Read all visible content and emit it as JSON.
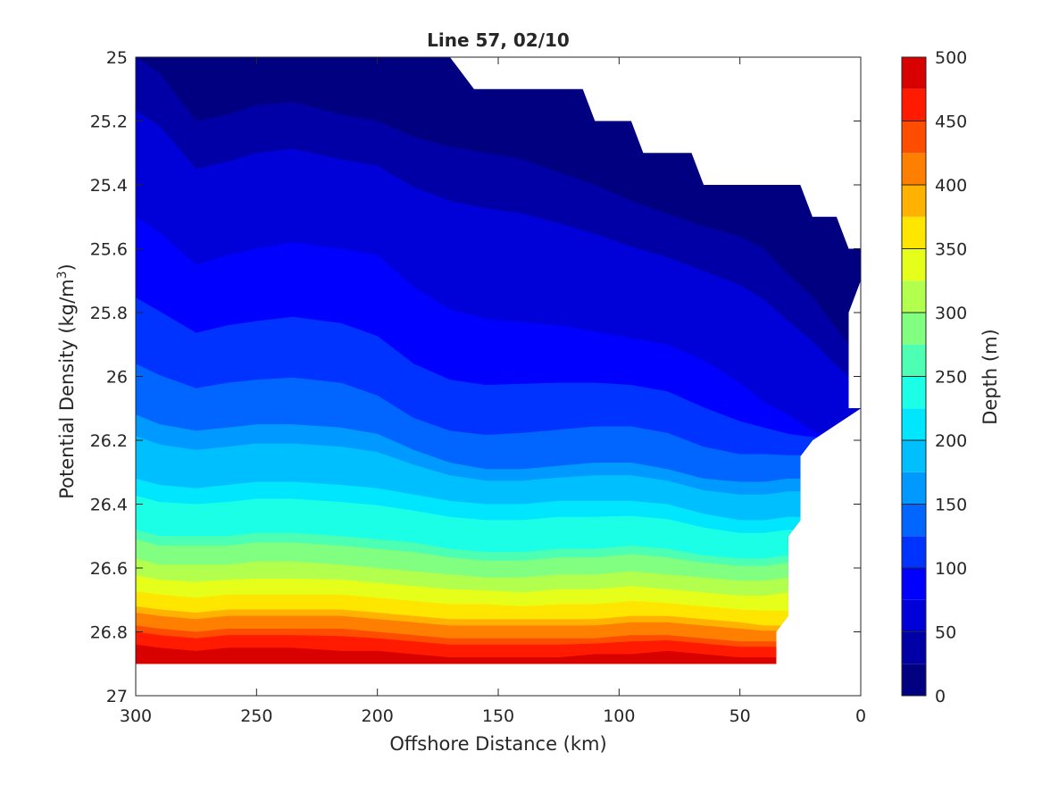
{
  "chart_data": {
    "type": "contourf",
    "title": "Line 57, 02/10",
    "xlabel": "Offshore Distance (km)",
    "ylabel_main": "Potential Density (kg/m",
    "ylabel_sup": "3",
    "ylabel_tail": ")",
    "xlim": [
      300,
      0
    ],
    "x_reversed": true,
    "ylim": [
      25,
      27
    ],
    "y_reversed": true,
    "xticks": [
      300,
      250,
      200,
      150,
      100,
      50,
      0
    ],
    "yticks": [
      25,
      25.2,
      25.4,
      25.6,
      25.8,
      26,
      26.2,
      26.4,
      26.6,
      26.8,
      27
    ],
    "xtick_labels": [
      "300",
      "250",
      "200",
      "150",
      "100",
      "50",
      "0"
    ],
    "ytick_labels": [
      "25",
      "25.2",
      "25.4",
      "25.6",
      "25.8",
      "26",
      "26.2",
      "26.4",
      "26.6",
      "26.8",
      "27"
    ],
    "colorbar": {
      "label": "Depth (m)",
      "levels": [
        0,
        25,
        50,
        75,
        100,
        125,
        150,
        175,
        200,
        225,
        250,
        275,
        300,
        325,
        350,
        375,
        400,
        425,
        450,
        475,
        500
      ],
      "ticks": [
        0,
        50,
        100,
        150,
        200,
        250,
        300,
        350,
        400,
        450,
        500
      ],
      "tick_labels": [
        "0",
        "50",
        "100",
        "150",
        "200",
        "250",
        "300",
        "350",
        "400",
        "450",
        "500"
      ],
      "colormap": "jet",
      "colors": [
        "#000080",
        "#0000a6",
        "#0000d9",
        "#0000ff",
        "#0033ff",
        "#0066ff",
        "#0099ff",
        "#00bfff",
        "#00e6ff",
        "#1affe6",
        "#4dffb3",
        "#80ff80",
        "#b3ff4d",
        "#e6ff1a",
        "#ffe600",
        "#ffb300",
        "#ff8000",
        "#ff4d00",
        "#ff1a00",
        "#d90000"
      ]
    },
    "contour_lines_depth": {
      "x": [
        300,
        290,
        275,
        262,
        250,
        235,
        215,
        200,
        185,
        170,
        155,
        140,
        125,
        110,
        95,
        80,
        65,
        50,
        40,
        30,
        20,
        10,
        5
      ],
      "isopycnal_depth_25": [
        25.0,
        25.05,
        25.2,
        25.18,
        25.15,
        25.14,
        25.18,
        25.2,
        25.25,
        25.28,
        25.3,
        25.32,
        25.36,
        25.4,
        25.45,
        25.49,
        25.53,
        25.56,
        25.6,
        25.68,
        25.75,
        25.85,
        25.9
      ],
      "isopycnal_depth_50": [
        25.5,
        25.55,
        25.65,
        25.62,
        25.6,
        25.58,
        25.6,
        25.62,
        25.72,
        25.79,
        25.82,
        25.83,
        25.84,
        25.86,
        25.88,
        25.9,
        25.95,
        26.02,
        26.08,
        26.12,
        26.17,
        26.2,
        26.2
      ],
      "isopycnal_depth_75": [
        25.88,
        25.92,
        25.97,
        25.95,
        25.94,
        25.93,
        25.95,
        26.0,
        26.08,
        26.12,
        26.13,
        26.12,
        26.11,
        26.1,
        26.1,
        26.12,
        26.17,
        26.2,
        26.2,
        26.21,
        26.2,
        null,
        null
      ],
      "isopycnal_depth_100": [
        26.12,
        26.15,
        26.17,
        26.16,
        26.15,
        26.15,
        26.16,
        26.18,
        26.23,
        26.27,
        26.29,
        26.29,
        26.28,
        26.27,
        26.27,
        26.29,
        26.32,
        26.33,
        26.33,
        26.32,
        null,
        null,
        null
      ],
      "isopycnal_depth_150": [
        26.32,
        26.34,
        26.35,
        26.34,
        26.33,
        26.33,
        26.34,
        26.35,
        26.37,
        26.39,
        26.4,
        26.4,
        26.39,
        26.39,
        26.39,
        26.4,
        26.43,
        26.45,
        26.45,
        26.44,
        null,
        null,
        null
      ],
      "isopycnal_depth_200": [
        26.48,
        26.5,
        26.5,
        26.5,
        26.49,
        26.49,
        26.5,
        26.51,
        26.52,
        26.54,
        26.55,
        26.55,
        26.54,
        26.54,
        26.53,
        26.54,
        26.56,
        26.57,
        26.57,
        26.56,
        null,
        null,
        null
      ],
      "isopycnal_depth_250": [
        26.57,
        26.59,
        26.59,
        26.59,
        26.58,
        26.58,
        26.59,
        26.6,
        26.61,
        26.62,
        26.63,
        26.63,
        26.62,
        26.62,
        26.61,
        26.62,
        26.63,
        26.64,
        26.64,
        26.63,
        null,
        null,
        null
      ],
      "isopycnal_depth_300": [
        26.65,
        26.66,
        26.67,
        26.66,
        26.66,
        26.66,
        26.66,
        26.67,
        26.68,
        26.69,
        26.69,
        26.7,
        26.69,
        26.69,
        26.68,
        26.69,
        26.7,
        26.71,
        26.71,
        26.7,
        null,
        null,
        null
      ],
      "isopycnal_depth_350": [
        26.72,
        26.73,
        26.74,
        26.73,
        26.73,
        26.73,
        26.73,
        26.74,
        26.75,
        26.76,
        26.76,
        26.76,
        26.76,
        26.76,
        26.75,
        26.75,
        26.76,
        26.77,
        26.78,
        null,
        null,
        null,
        null
      ],
      "isopycnal_depth_400": [
        26.78,
        26.79,
        26.8,
        26.79,
        26.79,
        26.79,
        26.79,
        26.8,
        26.81,
        26.82,
        26.82,
        26.82,
        26.82,
        26.82,
        26.81,
        26.81,
        26.82,
        26.83,
        26.83,
        null,
        null,
        null,
        null
      ],
      "isopycnal_depth_450": [
        26.84,
        26.85,
        26.86,
        26.85,
        26.85,
        26.85,
        26.86,
        26.86,
        26.87,
        26.88,
        26.88,
        26.88,
        26.88,
        26.87,
        26.87,
        26.86,
        26.87,
        26.88,
        26.88,
        null,
        null,
        null,
        null
      ]
    },
    "valid_region": {
      "top_boundary": [
        [
          300,
          25.0
        ],
        [
          170,
          25.0
        ],
        [
          160,
          25.1
        ],
        [
          115,
          25.1
        ],
        [
          110,
          25.2
        ],
        [
          95,
          25.2
        ],
        [
          90,
          25.3
        ],
        [
          70,
          25.3
        ],
        [
          65,
          25.4
        ],
        [
          25,
          25.4
        ],
        [
          20,
          25.5
        ],
        [
          10,
          25.5
        ],
        [
          5,
          25.6
        ],
        [
          0,
          25.6
        ],
        [
          0,
          25.7
        ]
      ],
      "right_boundary": [
        [
          0,
          25.7
        ],
        [
          5,
          25.8
        ],
        [
          5,
          26.1
        ],
        [
          0,
          26.1
        ]
      ],
      "lower_right_boundary": [
        [
          20,
          26.2
        ],
        [
          25,
          26.25
        ],
        [
          25,
          26.45
        ],
        [
          30,
          26.5
        ],
        [
          30,
          26.75
        ],
        [
          35,
          26.8
        ],
        [
          35,
          26.9
        ]
      ],
      "bottom_boundary": [
        [
          35,
          26.9
        ],
        [
          300,
          26.9
        ]
      ]
    }
  }
}
